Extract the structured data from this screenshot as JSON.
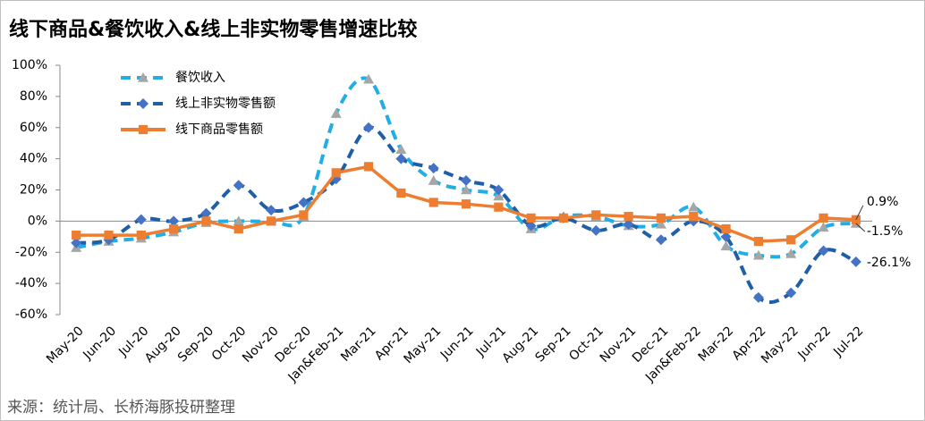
{
  "chart_data": {
    "type": "line",
    "title": "线下商品&餐饮收入&线上非实物零售增速比较",
    "source": "来源：统计局、长桥海豚投研整理",
    "categories": [
      "May-20",
      "Jun-20",
      "Jul-20",
      "Aug-20",
      "Sep-20",
      "Oct-20",
      "Nov-20",
      "Dec-20",
      "Jan&Feb-21",
      "Mar-21",
      "Apr-21",
      "May-21",
      "Jun-21",
      "Jul-21",
      "Aug-21",
      "Sep-21",
      "Oct-21",
      "Nov-21",
      "Dec-21",
      "Jan&Feb-22",
      "Mar-22",
      "Apr-22",
      "May-22",
      "Jun-22",
      "Jul-22"
    ],
    "series": [
      {
        "name": "餐饮收入",
        "color": "#21ade6",
        "line_style": "dashed",
        "marker": "triangle",
        "marker_color": "#a6a6a6",
        "values": [
          -17,
          -13,
          -11,
          -7,
          -1,
          0,
          0,
          3,
          69,
          91,
          46,
          26,
          20,
          16,
          -5,
          3,
          3,
          -3,
          -2,
          9,
          -16,
          -22,
          -21,
          -4,
          -1.5
        ],
        "value_labels": [
          null,
          null,
          null,
          null,
          null,
          null,
          null,
          null,
          null,
          null,
          null,
          null,
          null,
          null,
          null,
          null,
          null,
          null,
          null,
          null,
          null,
          null,
          null,
          null,
          "-1.5%"
        ]
      },
      {
        "name": "线上非实物零售额",
        "color": "#1f5fa8",
        "line_style": "dashed",
        "marker": "diamond",
        "marker_color": "#4472c4",
        "values": [
          -14,
          -12,
          1,
          0,
          5,
          23,
          7,
          12,
          27,
          60,
          40,
          34,
          26,
          20,
          -3,
          2,
          -6,
          -2,
          -12,
          0,
          -10,
          -49,
          -46,
          -19,
          -26.1
        ],
        "value_labels": [
          null,
          null,
          null,
          null,
          null,
          null,
          null,
          null,
          null,
          null,
          null,
          null,
          null,
          null,
          null,
          null,
          null,
          null,
          null,
          null,
          null,
          null,
          null,
          null,
          "-26.1%"
        ]
      },
      {
        "name": "线下商品零售额",
        "color": "#ed7d31",
        "line_style": "solid",
        "marker": "square",
        "marker_color": "#ed7d31",
        "values": [
          -9,
          -9,
          -9,
          -5,
          0,
          -5,
          0,
          4,
          31,
          35,
          18,
          12,
          11,
          9,
          2,
          2,
          4,
          3,
          2,
          3,
          -5,
          -13,
          -12,
          2,
          0.9
        ],
        "value_labels": [
          null,
          null,
          null,
          null,
          null,
          null,
          null,
          null,
          null,
          null,
          null,
          null,
          null,
          null,
          null,
          null,
          null,
          null,
          null,
          null,
          null,
          null,
          null,
          null,
          "0.9%"
        ]
      }
    ],
    "ylim": [
      -60,
      100
    ],
    "yticks": [
      {
        "value": -60,
        "label": "-60%"
      },
      {
        "value": -40,
        "label": "-40%"
      },
      {
        "value": -20,
        "label": "-20%"
      },
      {
        "value": 0,
        "label": "0%"
      },
      {
        "value": 20,
        "label": "20%"
      },
      {
        "value": 40,
        "label": "40%"
      },
      {
        "value": 60,
        "label": "60%"
      },
      {
        "value": 80,
        "label": "80%"
      },
      {
        "value": 100,
        "label": "100%"
      }
    ],
    "legend": "upper left"
  }
}
